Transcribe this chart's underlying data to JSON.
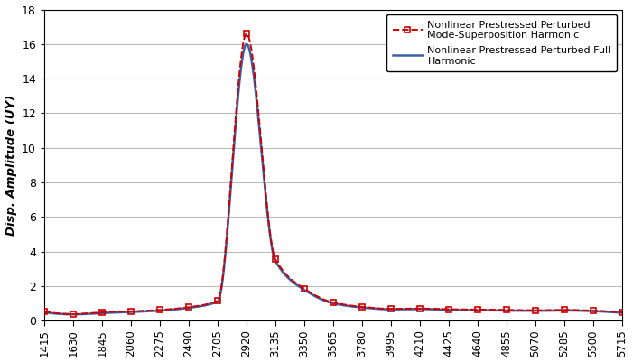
{
  "x_ticks": [
    1415,
    1630,
    1845,
    2060,
    2275,
    2490,
    2705,
    2920,
    3135,
    3350,
    3565,
    3780,
    3995,
    4210,
    4425,
    4640,
    4855,
    5070,
    5285,
    5500,
    5715
  ],
  "x_min": 1415,
  "x_max": 5715,
  "y_min": 0,
  "y_max": 18,
  "y_ticks": [
    0,
    2,
    4,
    6,
    8,
    10,
    12,
    14,
    16,
    18
  ],
  "ylabel": "Disp. Amplitude (UY)",
  "legend1": "Nonlinear Prestressed Perturbed\nMode-Superposition Harmonic",
  "legend2": "Nonlinear Prestressed Perturbed Full\nHarmonic",
  "line1_color": "#cc0000",
  "line2_color": "#3a5faa",
  "background_color": "#ffffff",
  "grid_color": "#bbbbbb",
  "marker_freqs": [
    1415,
    1630,
    1845,
    2060,
    2275,
    2490,
    2705,
    2920,
    3135,
    3350,
    3565,
    3780,
    3995,
    4210,
    4425,
    4640,
    4855,
    5070,
    5285,
    5500,
    5715
  ],
  "amp1_markers": [
    0.52,
    0.38,
    0.48,
    0.54,
    0.62,
    0.78,
    1.15,
    16.6,
    3.55,
    1.85,
    1.05,
    0.8,
    0.68,
    0.7,
    0.66,
    0.65,
    0.62,
    0.6,
    0.62,
    0.58,
    0.48
  ],
  "amp2_markers": [
    0.48,
    0.36,
    0.44,
    0.5,
    0.58,
    0.74,
    1.1,
    16.0,
    3.45,
    1.78,
    1.0,
    0.76,
    0.65,
    0.67,
    0.62,
    0.61,
    0.58,
    0.57,
    0.59,
    0.55,
    0.45
  ]
}
